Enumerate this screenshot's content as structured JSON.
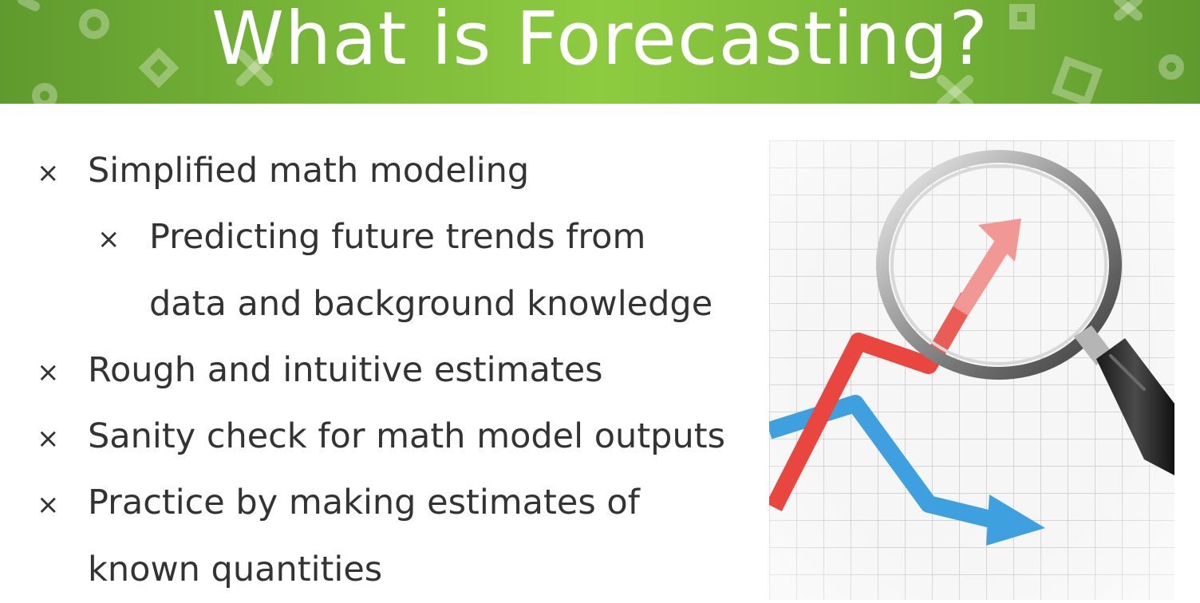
{
  "slide": {
    "title": "What is Forecasting?",
    "bullet_marker": "×",
    "bullets": [
      {
        "text": "Simplified math modeling"
      },
      {
        "text": "Predicting future trends from"
      },
      {
        "text": "data and background knowledge"
      },
      {
        "text": "Rough and intuitive estimates"
      },
      {
        "text": "Sanity check for math model outputs"
      },
      {
        "text": "Practice by making estimates of"
      },
      {
        "text": "known quantities"
      }
    ]
  },
  "colors": {
    "banner_green": "#7cba3a",
    "text": "#333333",
    "arrow_up": "#e8463f",
    "arrow_down": "#3fa0e0"
  },
  "figure": {
    "subject": "magnifying-glass-over-trend-chart-photo"
  }
}
